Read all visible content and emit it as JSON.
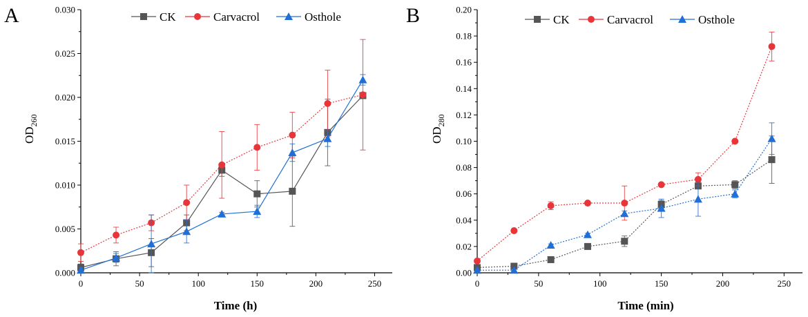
{
  "chart_data": [
    {
      "type": "line",
      "panel_label": "A",
      "xlabel": "Time (h)",
      "ylabel_main": "OD",
      "ylabel_sub": "260",
      "xlim": [
        0,
        265
      ],
      "ylim": [
        0,
        0.03
      ],
      "xticks": [
        0,
        50,
        100,
        150,
        200,
        250
      ],
      "xtick_labels": [
        "0",
        "50",
        "100",
        "150",
        "200",
        "250"
      ],
      "yticks": [
        0,
        0.005,
        0.01,
        0.015,
        0.02,
        0.025,
        0.03
      ],
      "ytick_labels": [
        "0.000",
        "0.005",
        "0.010",
        "0.015",
        "0.020",
        "0.025",
        "0.030"
      ],
      "x": [
        0,
        30,
        60,
        90,
        120,
        150,
        180,
        210,
        240
      ],
      "legend_position": "top-center",
      "series": [
        {
          "name": "CK",
          "color": "#555555",
          "marker": "square",
          "line": "solid",
          "values": [
            0.0006,
            0.0016,
            0.0023,
            0.0057,
            0.0117,
            0.009,
            0.0093,
            0.016,
            0.0202
          ],
          "errors": [
            0.0004,
            0.0008,
            0.0016,
            0.0009,
            0.0007,
            0.0015,
            0.004,
            0.0038,
            0.0003
          ]
        },
        {
          "name": "Carvacrol",
          "color": "#e8353a",
          "marker": "circle",
          "line": "dotted",
          "values": [
            0.0023,
            0.0043,
            0.0057,
            0.008,
            0.0123,
            0.0143,
            0.0157,
            0.0193,
            0.0203
          ],
          "errors": [
            0.001,
            0.0009,
            0.0009,
            0.002,
            0.0038,
            0.0026,
            0.0026,
            0.0038,
            0.0063
          ]
        },
        {
          "name": "Osthole",
          "color": "#1f6fd6",
          "marker": "triangle",
          "line": "solid",
          "values": [
            0.0003,
            0.0017,
            0.0033,
            0.0047,
            0.0067,
            0.007,
            0.0137,
            0.0153,
            0.022
          ],
          "errors": [
            0.0003,
            0.0005,
            0.0033,
            0.0013,
            0.0002,
            0.0007,
            0.001,
            0.0009,
            0.0006
          ]
        }
      ]
    },
    {
      "type": "line",
      "panel_label": "B",
      "xlabel": "Time (min)",
      "ylabel_main": "OD",
      "ylabel_sub": "280",
      "xlim": [
        0,
        265
      ],
      "ylim": [
        0,
        0.2
      ],
      "xticks": [
        0,
        50,
        100,
        150,
        200,
        250
      ],
      "xtick_labels": [
        "0",
        "50",
        "100",
        "150",
        "200",
        "250"
      ],
      "yticks": [
        0,
        0.02,
        0.04,
        0.06,
        0.08,
        0.1,
        0.12,
        0.14,
        0.16,
        0.18,
        0.2
      ],
      "ytick_labels": [
        "0.00",
        "0.02",
        "0.04",
        "0.06",
        "0.08",
        "0.10",
        "0.12",
        "0.14",
        "0.16",
        "0.18",
        "0.20"
      ],
      "x": [
        0,
        30,
        60,
        90,
        120,
        150,
        180,
        210,
        240
      ],
      "legend_position": "top-center",
      "series": [
        {
          "name": "CK",
          "color": "#555555",
          "marker": "square",
          "line": "dotted",
          "values": [
            0.004,
            0.005,
            0.01,
            0.02,
            0.024,
            0.052,
            0.066,
            0.067,
            0.086
          ],
          "errors": [
            0.001,
            0.001,
            0.001,
            0.001,
            0.004,
            0.003,
            0.001,
            0.003,
            0.018
          ]
        },
        {
          "name": "Carvacrol",
          "color": "#e8353a",
          "marker": "circle",
          "line": "dotted",
          "values": [
            0.009,
            0.032,
            0.051,
            0.053,
            0.053,
            0.067,
            0.071,
            0.1,
            0.172
          ],
          "errors": [
            0.001,
            0.001,
            0.003,
            0.001,
            0.013,
            0.001,
            0.005,
            0.001,
            0.011
          ]
        },
        {
          "name": "Osthole",
          "color": "#1f6fd6",
          "marker": "triangle",
          "line": "dotted",
          "values": [
            0.002,
            0.002,
            0.021,
            0.029,
            0.045,
            0.049,
            0.056,
            0.06,
            0.102
          ],
          "errors": [
            0.001,
            0.001,
            0.001,
            0.001,
            0.002,
            0.007,
            0.013,
            0.003,
            0.012
          ]
        }
      ]
    }
  ]
}
